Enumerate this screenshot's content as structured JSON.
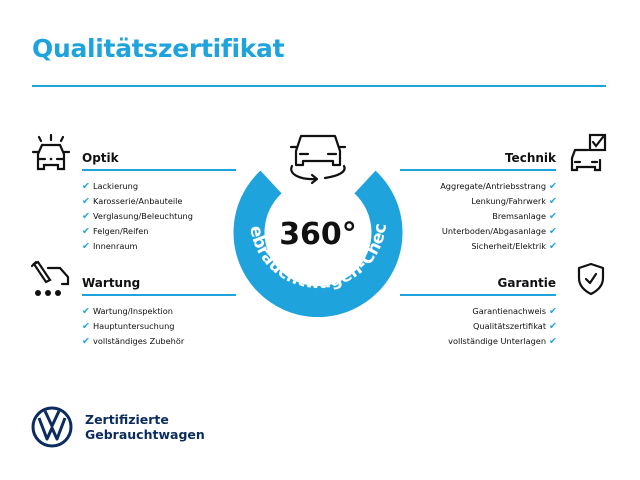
{
  "title": "Qualitätszertifikat",
  "badge": {
    "value": "360°",
    "ring_text": "Gebrauchtwagen-Check",
    "color": "#1fa3dc"
  },
  "sections": {
    "optik": {
      "heading": "Optik",
      "icon": "car-lights-icon",
      "items": [
        "Lackierung",
        "Karosserie/Anbauteile",
        "Verglasung/Beleuchtung",
        "Felgen/Reifen",
        "Innenraum"
      ]
    },
    "wartung": {
      "heading": "Wartung",
      "icon": "service-tools-icon",
      "items": [
        "Wartung/Inspektion",
        "Hauptuntersuchung",
        "vollständiges Zubehör"
      ]
    },
    "technik": {
      "heading": "Technik",
      "icon": "car-checklist-icon",
      "items": [
        "Aggregate/Antriebsstrang",
        "Lenkung/Fahrwerk",
        "Bremsanlage",
        "Unterboden/Abgasanlage",
        "Sicherheit/Elektrik"
      ]
    },
    "garantie": {
      "heading": "Garantie",
      "icon": "shield-check-icon",
      "items": [
        "Garantienachweis",
        "Qualitätszertifikat",
        "vollständige Unterlagen"
      ]
    }
  },
  "check_mark": "✔",
  "logo": {
    "line1": "Zertifizierte",
    "line2": "Gebrauchtwagen",
    "brand_color": "#0b2c5e"
  }
}
